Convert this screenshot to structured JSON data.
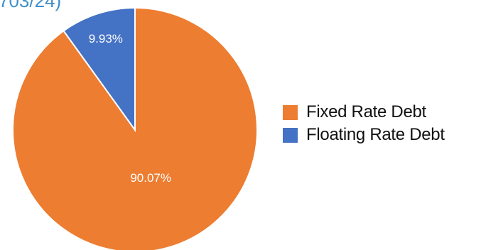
{
  "header": {
    "partial_text": "703/24)"
  },
  "chart_data": {
    "type": "pie",
    "title": "",
    "legend_position": "right",
    "slices": [
      {
        "name": "Fixed Rate Debt",
        "value": 90.07,
        "label": "90.07%",
        "color": "#ed7d31"
      },
      {
        "name": "Floating Rate Debt",
        "value": 9.93,
        "label": "9.93%",
        "color": "#4472c4"
      }
    ]
  }
}
